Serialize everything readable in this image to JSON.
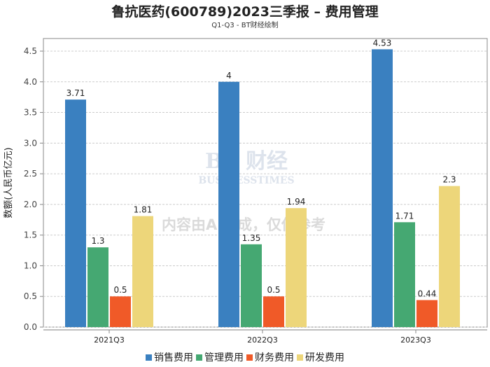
{
  "chart_data": {
    "type": "bar",
    "title": "鲁抗医药(600789)2023三季报 – 费用管理",
    "subtitle": "Q1-Q3 - BT财经绘制",
    "xlabel": "",
    "ylabel": "数额(人民币亿元)",
    "ylim": [
      0,
      4.7
    ],
    "yticks": [
      0.0,
      0.5,
      1.0,
      1.5,
      2.0,
      2.5,
      3.0,
      3.5,
      4.0,
      4.5
    ],
    "grid": true,
    "legend_position": "bottom",
    "categories": [
      "2021Q3",
      "2022Q3",
      "2023Q3"
    ],
    "series": [
      {
        "name": "销售费用",
        "color": "#3a80c0",
        "values": [
          3.71,
          4,
          4.53
        ]
      },
      {
        "name": "管理费用",
        "color": "#45a872",
        "values": [
          1.3,
          1.35,
          1.71
        ]
      },
      {
        "name": "财务费用",
        "color": "#f05a28",
        "values": [
          0.5,
          0.5,
          0.44
        ]
      },
      {
        "name": "研发费用",
        "color": "#edd67a",
        "values": [
          1.81,
          1.94,
          2.3
        ]
      }
    ]
  },
  "watermark": {
    "logo": "BT 财经",
    "logo_sub": "BUSINESSTIMES",
    "notice": "内容由AI生成，仅供参考"
  }
}
